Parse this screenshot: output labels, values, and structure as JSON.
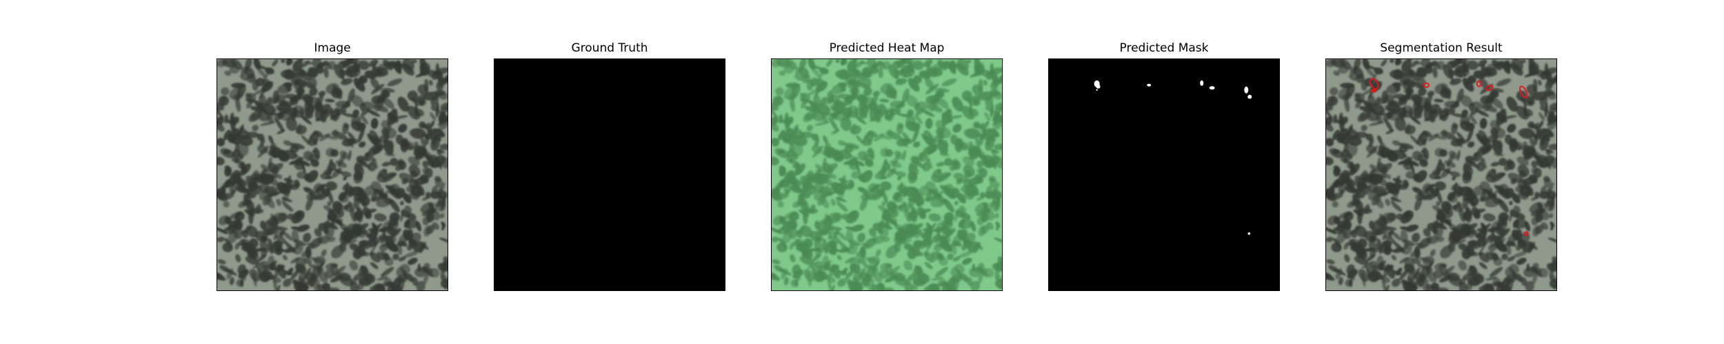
{
  "figure": {
    "panels": [
      {
        "title": "Image",
        "kind": "texture",
        "base_color": "#8f9a8c",
        "spot_color": "#343833"
      },
      {
        "title": "Ground Truth",
        "kind": "blank",
        "base_color": "#000000"
      },
      {
        "title": "Predicted Heat Map",
        "kind": "texture",
        "base_color": "#7fc98a",
        "spot_color": "#4b8a54"
      },
      {
        "title": "Predicted Mask",
        "kind": "mask",
        "base_color": "#000000",
        "blob_color": "#ffffff"
      },
      {
        "title": "Segmentation Result",
        "kind": "texture_with_contours",
        "base_color": "#8f9a8c",
        "spot_color": "#343833",
        "contour_color": "#e0191d"
      }
    ]
  }
}
